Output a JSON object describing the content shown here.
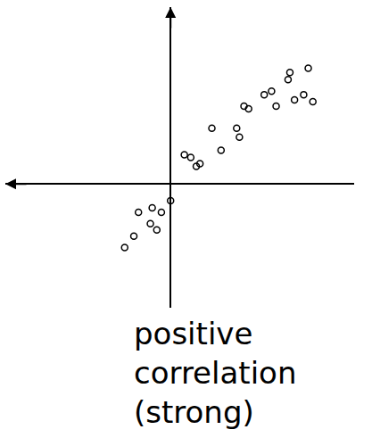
{
  "chart_data": {
    "type": "scatter",
    "title": "positive correlation (strong)",
    "x": [
      0.75,
      1.1,
      1.6,
      1.4,
      2.25,
      2.75,
      3.6,
      3.75,
      4,
      4.25,
      5.1,
      5.5,
      5.75,
      6.4,
      6.5,
      6.75,
      7.25,
      7.5,
      7.75,
      0,
      -1,
      -0.5,
      -1.75,
      -1.1,
      -0.75,
      -2,
      -2.5
    ],
    "values": [
      1.65,
      1.5,
      1.15,
      1.0,
      3.15,
      1.9,
      3.15,
      2.65,
      4.4,
      4.25,
      5.05,
      5.25,
      4.4,
      5.9,
      6.3,
      4.75,
      5.05,
      6.55,
      4.65,
      -0.95,
      -1.35,
      -1.6,
      -1.6,
      -2.25,
      -2.6,
      -2.95,
      -3.6
    ],
    "color": "#000000",
    "marker": "circle-open",
    "xlim": [
      -9,
      10
    ],
    "ylim": [
      -7,
      10
    ],
    "grid": false,
    "tick_labels": false
  }
}
